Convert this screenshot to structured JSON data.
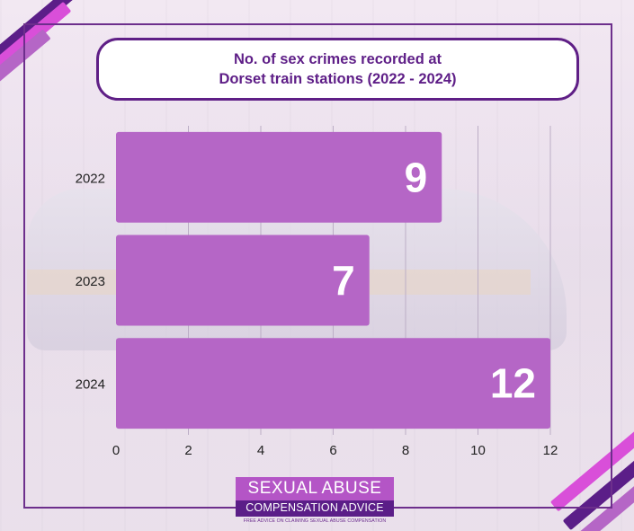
{
  "chart_data": {
    "type": "bar",
    "orientation": "horizontal",
    "title": "No. of sex crimes recorded at\nDorset train stations (2022 - 2024)",
    "categories": [
      "2022",
      "2023",
      "2024"
    ],
    "values": [
      9,
      7,
      12
    ],
    "data_labels": [
      "9",
      "7",
      "12"
    ],
    "xlim": [
      0,
      12
    ],
    "x_ticks": [
      0,
      2,
      4,
      6,
      8,
      10,
      12
    ],
    "x_tick_labels": [
      "0",
      "2",
      "4",
      "6",
      "8",
      "10",
      "12"
    ],
    "xlabel": "",
    "ylabel": "",
    "grid": true,
    "bar_color": "#b566c6"
  },
  "logo": {
    "line1": "SEXUAL ABUSE",
    "line2": "COMPENSATION ADVICE",
    "tagline": "FREE ADVICE ON CLAIMING SEXUAL ABUSE COMPENSATION"
  },
  "colors": {
    "accent_dark": "#5e1e87",
    "accent_light": "#b566c6",
    "accent_pink": "#d94fd9"
  }
}
